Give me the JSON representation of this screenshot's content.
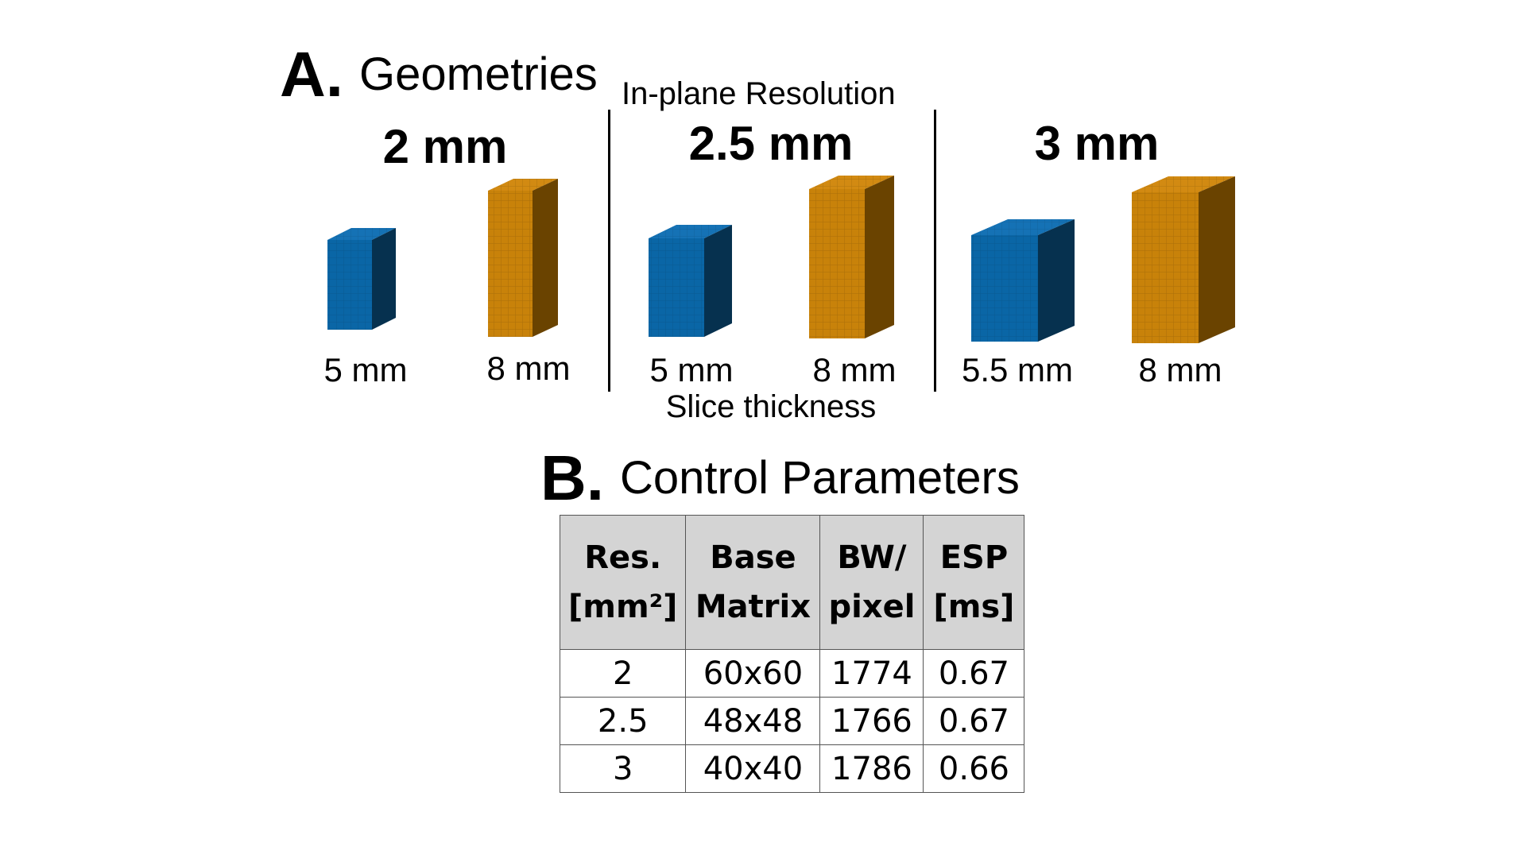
{
  "section_a": {
    "letter": "A.",
    "title": "Geometries"
  },
  "in_plane_label": "In-plane Resolution",
  "slice_label": "Slice thickness",
  "groups": [
    {
      "resolution": "2 mm",
      "thin": "5 mm",
      "thick": "8 mm"
    },
    {
      "resolution": "2.5 mm",
      "thin": "5 mm",
      "thick": "8 mm"
    },
    {
      "resolution": "3 mm",
      "thin": "5.5 mm",
      "thick": "8 mm"
    }
  ],
  "colors": {
    "blue_front": "#0a66a6",
    "blue_side": "#06314f",
    "blue_top": "#1572b5",
    "orange_front": "#c8820a",
    "orange_side": "#6a4300",
    "orange_top": "#d28a12"
  },
  "section_b": {
    "letter": "B.",
    "title": "Control Parameters"
  },
  "table": {
    "headers": [
      [
        "Res.",
        "[mm²]"
      ],
      [
        "Base",
        "Matrix"
      ],
      [
        "BW/",
        "pixel"
      ],
      [
        "ESP",
        "[ms]"
      ]
    ],
    "rows": [
      [
        "2",
        "60x60",
        "1774",
        "0.67"
      ],
      [
        "2.5",
        "48x48",
        "1766",
        "0.67"
      ],
      [
        "3",
        "40x40",
        "1786",
        "0.66"
      ]
    ]
  }
}
